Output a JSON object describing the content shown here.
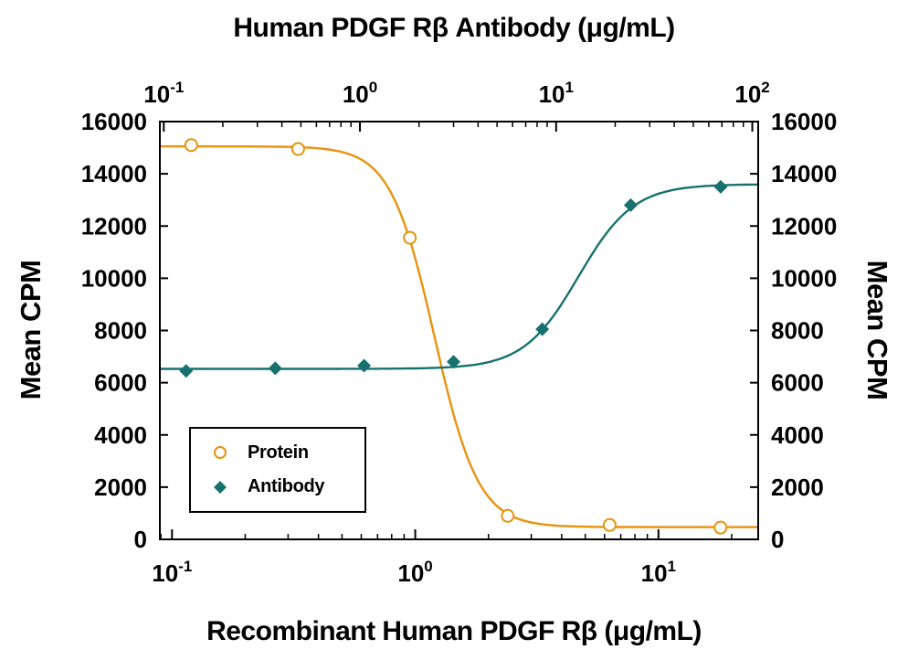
{
  "figure": {
    "top_title": "Human PDGF Rβ Antibody (μg/mL)",
    "bottom_title": "Recombinant Human PDGF Rβ (μg/mL)",
    "left_axis_label": "Mean CPM",
    "right_axis_label": "Mean CPM"
  },
  "legend": {
    "items": [
      {
        "label": "Protein",
        "marker": "open-circle-icon",
        "color": "#E8920F"
      },
      {
        "label": "Antibody",
        "marker": "filled-diamond-icon",
        "color": "#17716F"
      }
    ]
  },
  "chart_data": {
    "type": "scatter",
    "title": "Human PDGF Rβ Antibody (μg/mL)",
    "xlabel_bottom": "Recombinant Human PDGF Rβ (μg/mL)",
    "xlabel_top": "Human PDGF Rβ Antibody (μg/mL)",
    "ylabel_left": "Mean CPM",
    "ylabel_right": "Mean CPM",
    "grid": false,
    "legend_position": "lower-left-inside",
    "y_axis": {
      "min": 0,
      "max": 16000,
      "tick_step": 2000,
      "ticks": [
        0,
        2000,
        4000,
        6000,
        8000,
        10000,
        12000,
        14000,
        16000
      ]
    },
    "top_x_axis": {
      "scale": "log",
      "min_exp": -1.02,
      "max_exp": 2.03,
      "tick_exps": [
        -1,
        0,
        1,
        2
      ],
      "tick_labels": [
        "10^-1",
        "10^0",
        "10^1",
        "10^2"
      ]
    },
    "bottom_x_axis": {
      "scale": "log",
      "min_exp": -1.05,
      "max_exp": 1.41,
      "tick_exps": [
        -1,
        0,
        1
      ],
      "tick_labels": [
        "10^-1",
        "10^0",
        "10^1"
      ]
    },
    "series": [
      {
        "name": "Protein",
        "axis": "bottom",
        "marker": "open-circle",
        "color": "#E8920F",
        "points": [
          [
            0.12,
            15100
          ],
          [
            0.33,
            14950
          ],
          [
            0.95,
            11550
          ],
          [
            2.4,
            900
          ],
          [
            6.3,
            550
          ],
          [
            18,
            450
          ]
        ],
        "fit": {
          "model": "4PL",
          "direction": "decreasing",
          "top": 15050,
          "bottom": 470,
          "ec50": 1.2,
          "hill": 4.8
        }
      },
      {
        "name": "Antibody",
        "axis": "top",
        "marker": "filled-diamond",
        "color": "#17716F",
        "points": [
          [
            0.13,
            6450
          ],
          [
            0.37,
            6550
          ],
          [
            1.05,
            6650
          ],
          [
            3.0,
            6800
          ],
          [
            8.5,
            8050
          ],
          [
            24,
            12800
          ],
          [
            69,
            13500
          ]
        ],
        "fit": {
          "model": "4PL",
          "direction": "increasing",
          "top": 13600,
          "bottom": 6530,
          "ec50": 13,
          "hill": 3.1
        }
      }
    ]
  }
}
